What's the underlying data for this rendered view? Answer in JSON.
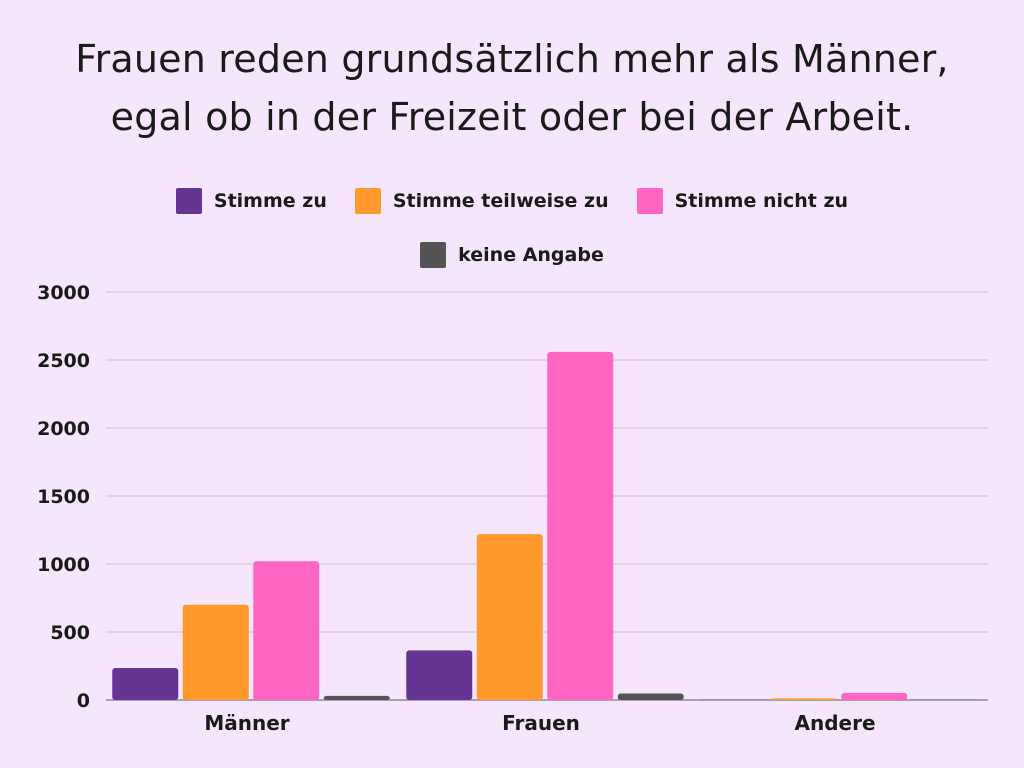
{
  "chart_data": {
    "type": "bar",
    "title_lines": [
      "Frauen reden grundsätzlich mehr als Männer,",
      "egal ob in der Freizeit oder bei der Arbeit."
    ],
    "categories": [
      "Männer",
      "Frauen",
      "Andere"
    ],
    "series": [
      {
        "name": "Stimme zu",
        "color": "#653594",
        "values": [
          235,
          365,
          2
        ]
      },
      {
        "name": "Stimme teilweise zu",
        "color": "#ff992e",
        "values": [
          700,
          1220,
          12
        ]
      },
      {
        "name": "Stimme nicht zu",
        "color": "#ff66c4",
        "values": [
          1020,
          2560,
          52
        ]
      },
      {
        "name": "keine Angabe",
        "color": "#545454",
        "values": [
          30,
          48,
          2
        ]
      }
    ],
    "yticks": [
      "0",
      "500",
      "1000",
      "1500",
      "2000",
      "2500",
      "3000"
    ],
    "ylim": [
      0,
      3000
    ],
    "grid": true,
    "legend": "top-center",
    "xlabel": "",
    "ylabel": ""
  }
}
